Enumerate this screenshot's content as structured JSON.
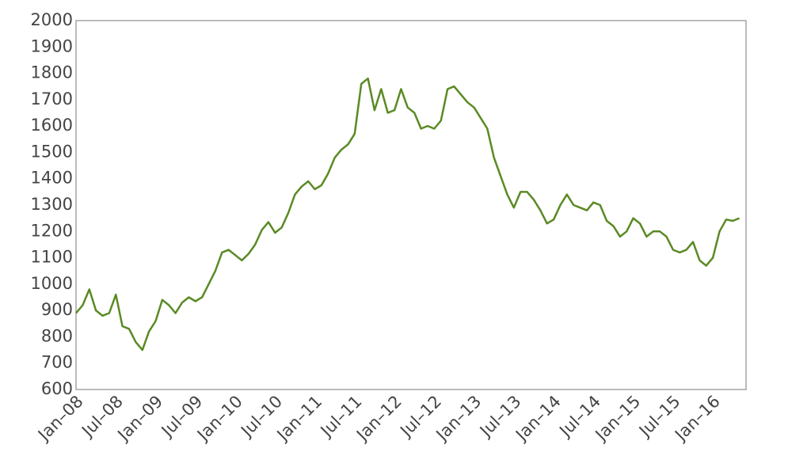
{
  "chart_data": {
    "type": "line",
    "x": [
      "2008-01",
      "2008-02",
      "2008-03",
      "2008-04",
      "2008-05",
      "2008-06",
      "2008-07",
      "2008-08",
      "2008-09",
      "2008-10",
      "2008-11",
      "2008-12",
      "2009-01",
      "2009-02",
      "2009-03",
      "2009-04",
      "2009-05",
      "2009-06",
      "2009-07",
      "2009-08",
      "2009-09",
      "2009-10",
      "2009-11",
      "2009-12",
      "2010-01",
      "2010-02",
      "2010-03",
      "2010-04",
      "2010-05",
      "2010-06",
      "2010-07",
      "2010-08",
      "2010-09",
      "2010-10",
      "2010-11",
      "2010-12",
      "2011-01",
      "2011-02",
      "2011-03",
      "2011-04",
      "2011-05",
      "2011-06",
      "2011-07",
      "2011-08",
      "2011-09",
      "2011-10",
      "2011-11",
      "2011-12",
      "2012-01",
      "2012-02",
      "2012-03",
      "2012-04",
      "2012-05",
      "2012-06",
      "2012-07",
      "2012-08",
      "2012-09",
      "2012-10",
      "2012-11",
      "2012-12",
      "2013-01",
      "2013-02",
      "2013-03",
      "2013-04",
      "2013-05",
      "2013-06",
      "2013-07",
      "2013-08",
      "2013-09",
      "2013-10",
      "2013-11",
      "2013-12",
      "2014-01",
      "2014-02",
      "2014-03",
      "2014-04",
      "2014-05",
      "2014-06",
      "2014-07",
      "2014-08",
      "2014-09",
      "2014-10",
      "2014-11",
      "2014-12",
      "2015-01",
      "2015-02",
      "2015-03",
      "2015-04",
      "2015-05",
      "2015-06",
      "2015-07",
      "2015-08",
      "2015-09",
      "2015-10",
      "2015-11",
      "2015-12",
      "2016-01",
      "2016-02",
      "2016-03",
      "2016-04",
      "2016-05"
    ],
    "series": [
      {
        "color": "#5a8a24",
        "values": [
          890,
          920,
          980,
          900,
          880,
          890,
          960,
          840,
          830,
          780,
          750,
          820,
          860,
          940,
          920,
          890,
          930,
          950,
          935,
          950,
          1000,
          1050,
          1120,
          1130,
          1110,
          1090,
          1115,
          1150,
          1205,
          1235,
          1195,
          1215,
          1270,
          1340,
          1370,
          1390,
          1360,
          1375,
          1420,
          1480,
          1510,
          1530,
          1570,
          1760,
          1780,
          1660,
          1740,
          1650,
          1660,
          1740,
          1670,
          1650,
          1590,
          1600,
          1590,
          1620,
          1740,
          1750,
          1720,
          1690,
          1670,
          1630,
          1590,
          1480,
          1410,
          1340,
          1290,
          1350,
          1350,
          1320,
          1280,
          1230,
          1245,
          1300,
          1340,
          1300,
          1290,
          1280,
          1310,
          1300,
          1240,
          1220,
          1180,
          1200,
          1250,
          1230,
          1180,
          1200,
          1200,
          1180,
          1130,
          1120,
          1130,
          1160,
          1090,
          1070,
          1100,
          1200,
          1245,
          1240,
          1250
        ]
      }
    ],
    "xlim": [
      "2008-01",
      "2016-06"
    ],
    "xticks": [
      {
        "value": "2008-01",
        "label": "Jan–08"
      },
      {
        "value": "2008-07",
        "label": "Jul–08"
      },
      {
        "value": "2009-01",
        "label": "Jan–09"
      },
      {
        "value": "2009-07",
        "label": "Jul–09"
      },
      {
        "value": "2010-01",
        "label": "Jan–10"
      },
      {
        "value": "2010-07",
        "label": "Jul–10"
      },
      {
        "value": "2011-01",
        "label": "Jan–11"
      },
      {
        "value": "2011-07",
        "label": "Jul–11"
      },
      {
        "value": "2012-01",
        "label": "Jan–12"
      },
      {
        "value": "2012-07",
        "label": "Jul–12"
      },
      {
        "value": "2013-01",
        "label": "Jan–13"
      },
      {
        "value": "2013-07",
        "label": "Jul–13"
      },
      {
        "value": "2014-01",
        "label": "Jan–14"
      },
      {
        "value": "2014-07",
        "label": "Jul–14"
      },
      {
        "value": "2015-01",
        "label": "Jan–15"
      },
      {
        "value": "2015-07",
        "label": "Jul–15"
      },
      {
        "value": "2016-01",
        "label": "Jan–16"
      }
    ],
    "ylim": [
      600,
      2000
    ],
    "yticks": [
      600,
      700,
      800,
      900,
      1000,
      1100,
      1200,
      1300,
      1400,
      1500,
      1600,
      1700,
      1800,
      1900,
      2000
    ],
    "grid": false
  }
}
